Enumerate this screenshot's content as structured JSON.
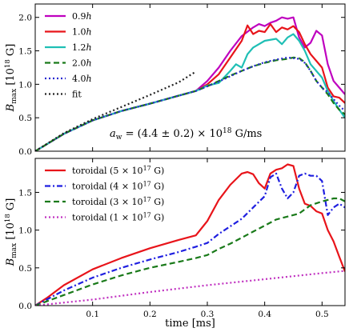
{
  "chart_data": [
    {
      "type": "line",
      "panel": "top",
      "xlim": [
        0.0,
        0.54
      ],
      "ylim": [
        0.0,
        2.2
      ],
      "xticks": [
        0.1,
        0.2,
        0.3,
        0.4,
        0.5
      ],
      "yticks": [
        0.0,
        0.5,
        1.0,
        1.5,
        2.0
      ],
      "ytick_labels": [
        "0.0",
        "0.5",
        "1.0",
        "1.5",
        "2.0"
      ],
      "ylabel_main": "B",
      "ylabel_sub": "max",
      "ylabel_units": "[10",
      "ylabel_exp": "18",
      "ylabel_tail": " G]",
      "annotation": "a_w = (4.4 ± 0.2) × 10^18 G/ms",
      "legend_position": "upper-left",
      "series": [
        {
          "name": "0.9h",
          "color": "#bf00bf",
          "style": "solid",
          "width": 2.2,
          "x": [
            0.0,
            0.05,
            0.1,
            0.15,
            0.2,
            0.25,
            0.28,
            0.3,
            0.32,
            0.34,
            0.36,
            0.38,
            0.39,
            0.4,
            0.41,
            0.42,
            0.43,
            0.44,
            0.45,
            0.46,
            0.47,
            0.48,
            0.49,
            0.5,
            0.51,
            0.52,
            0.53,
            0.54
          ],
          "y": [
            0.0,
            0.26,
            0.46,
            0.6,
            0.71,
            0.83,
            0.9,
            1.05,
            1.25,
            1.5,
            1.72,
            1.85,
            1.9,
            1.87,
            1.92,
            1.95,
            2.0,
            1.98,
            2.0,
            1.7,
            1.55,
            1.62,
            1.8,
            1.73,
            1.3,
            1.05,
            0.95,
            0.85
          ]
        },
        {
          "name": "1.0h",
          "color": "#e8141a",
          "style": "solid",
          "width": 2.2,
          "x": [
            0.0,
            0.05,
            0.1,
            0.15,
            0.2,
            0.25,
            0.28,
            0.3,
            0.32,
            0.34,
            0.36,
            0.37,
            0.38,
            0.39,
            0.4,
            0.41,
            0.42,
            0.43,
            0.44,
            0.45,
            0.46,
            0.47,
            0.48,
            0.49,
            0.5,
            0.51,
            0.52,
            0.53,
            0.54
          ],
          "y": [
            0.0,
            0.26,
            0.46,
            0.6,
            0.71,
            0.83,
            0.9,
            1.0,
            1.15,
            1.4,
            1.65,
            1.88,
            1.75,
            1.8,
            1.78,
            1.9,
            1.78,
            1.85,
            1.82,
            1.87,
            1.78,
            1.6,
            1.45,
            1.35,
            1.25,
            0.95,
            0.82,
            0.8,
            0.72
          ]
        },
        {
          "name": "1.2h",
          "color": "#1fbfb5",
          "style": "solid",
          "width": 2.2,
          "x": [
            0.0,
            0.05,
            0.1,
            0.15,
            0.2,
            0.25,
            0.28,
            0.3,
            0.32,
            0.34,
            0.35,
            0.36,
            0.37,
            0.38,
            0.4,
            0.42,
            0.43,
            0.44,
            0.45,
            0.46,
            0.47,
            0.48,
            0.5,
            0.51,
            0.52,
            0.53,
            0.54
          ],
          "y": [
            0.0,
            0.26,
            0.46,
            0.6,
            0.71,
            0.83,
            0.9,
            0.98,
            1.02,
            1.2,
            1.3,
            1.25,
            1.45,
            1.55,
            1.65,
            1.68,
            1.6,
            1.7,
            1.75,
            1.65,
            1.5,
            1.3,
            1.1,
            0.9,
            0.75,
            0.62,
            0.5
          ]
        },
        {
          "name": "2.0h",
          "color": "#1a7a1a",
          "style": "dashed",
          "width": 2.2,
          "x": [
            0.0,
            0.05,
            0.1,
            0.15,
            0.2,
            0.25,
            0.28,
            0.3,
            0.32,
            0.34,
            0.36,
            0.38,
            0.4,
            0.42,
            0.44,
            0.45,
            0.46,
            0.47,
            0.48,
            0.49,
            0.5,
            0.51,
            0.52,
            0.53,
            0.54
          ],
          "y": [
            0.0,
            0.26,
            0.46,
            0.6,
            0.71,
            0.83,
            0.9,
            0.97,
            1.05,
            1.13,
            1.2,
            1.27,
            1.32,
            1.36,
            1.38,
            1.4,
            1.39,
            1.33,
            1.2,
            1.05,
            0.95,
            0.85,
            0.72,
            0.62,
            0.55
          ]
        },
        {
          "name": "4.0h",
          "color": "#2a2ad0",
          "style": "dotted",
          "width": 2.2,
          "x": [
            0.0,
            0.05,
            0.1,
            0.15,
            0.2,
            0.25,
            0.28,
            0.3,
            0.32,
            0.34,
            0.36,
            0.38,
            0.4,
            0.42,
            0.44,
            0.46,
            0.47,
            0.48,
            0.49,
            0.5,
            0.51,
            0.52,
            0.53,
            0.54
          ],
          "y": [
            0.0,
            0.26,
            0.46,
            0.6,
            0.71,
            0.83,
            0.9,
            0.97,
            1.04,
            1.12,
            1.2,
            1.27,
            1.33,
            1.37,
            1.4,
            1.38,
            1.32,
            1.2,
            1.05,
            0.95,
            0.88,
            0.78,
            0.68,
            0.6
          ]
        },
        {
          "name": "fit",
          "color": "#222222",
          "style": "dotted",
          "width": 2.2,
          "x": [
            0.0,
            0.05,
            0.1,
            0.15,
            0.2,
            0.25,
            0.28
          ],
          "y": [
            0.0,
            0.27,
            0.48,
            0.66,
            0.84,
            1.03,
            1.19
          ]
        }
      ]
    },
    {
      "type": "line",
      "panel": "bottom",
      "xlim": [
        0.0,
        0.54
      ],
      "ylim": [
        0.0,
        1.95
      ],
      "xticks": [
        0.1,
        0.2,
        0.3,
        0.4,
        0.5
      ],
      "xtick_labels": [
        "0.1",
        "0.2",
        "0.3",
        "0.4",
        "0.5"
      ],
      "yticks": [
        0.0,
        0.5,
        1.0,
        1.5
      ],
      "ytick_labels": [
        "0.0",
        "0.5",
        "1.0",
        "1.5"
      ],
      "xlabel": "time [ms]",
      "ylabel_main": "B",
      "ylabel_sub": "max",
      "ylabel_units": "[10",
      "ylabel_exp": "18",
      "ylabel_tail": " G]",
      "legend_position": "upper-left",
      "series": [
        {
          "name": "toroidal (5 × 10^17 G)",
          "label_main": "toroidal (5 × 10",
          "label_exp": "17",
          "label_tail": " G)",
          "color": "#e8141a",
          "style": "solid",
          "width": 2.2,
          "x": [
            0.0,
            0.02,
            0.05,
            0.1,
            0.15,
            0.2,
            0.25,
            0.28,
            0.3,
            0.32,
            0.34,
            0.36,
            0.37,
            0.38,
            0.39,
            0.4,
            0.41,
            0.42,
            0.43,
            0.44,
            0.45,
            0.46,
            0.47,
            0.48,
            0.49,
            0.5,
            0.51,
            0.52,
            0.53,
            0.54
          ],
          "y": [
            0.0,
            0.1,
            0.27,
            0.48,
            0.63,
            0.76,
            0.87,
            0.93,
            1.12,
            1.4,
            1.6,
            1.75,
            1.77,
            1.74,
            1.62,
            1.55,
            1.75,
            1.8,
            1.82,
            1.87,
            1.85,
            1.55,
            1.35,
            1.32,
            1.25,
            1.22,
            1.0,
            0.85,
            0.65,
            0.45
          ]
        },
        {
          "name": "toroidal (4 × 10^17 G)",
          "label_main": "toroidal (4 × 10",
          "label_exp": "17",
          "label_tail": " G)",
          "color": "#1f1fe0",
          "style": "dashdot",
          "width": 2.2,
          "x": [
            0.0,
            0.05,
            0.1,
            0.15,
            0.2,
            0.25,
            0.28,
            0.3,
            0.32,
            0.34,
            0.36,
            0.38,
            0.4,
            0.41,
            0.42,
            0.43,
            0.44,
            0.45,
            0.46,
            0.47,
            0.48,
            0.49,
            0.5,
            0.51,
            0.52,
            0.53,
            0.54
          ],
          "y": [
            0.0,
            0.2,
            0.37,
            0.5,
            0.61,
            0.71,
            0.78,
            0.83,
            0.95,
            1.05,
            1.15,
            1.3,
            1.45,
            1.7,
            1.75,
            1.55,
            1.42,
            1.5,
            1.72,
            1.75,
            1.72,
            1.72,
            1.65,
            1.2,
            1.3,
            1.35,
            1.3
          ]
        },
        {
          "name": "toroidal (3 × 10^17 G)",
          "label_main": "toroidal (3 × 10",
          "label_exp": "17",
          "label_tail": " G)",
          "color": "#1a7a1a",
          "style": "dashed",
          "width": 2.2,
          "x": [
            0.0,
            0.05,
            0.1,
            0.15,
            0.2,
            0.25,
            0.28,
            0.3,
            0.32,
            0.34,
            0.36,
            0.38,
            0.4,
            0.42,
            0.44,
            0.46,
            0.48,
            0.5,
            0.51,
            0.52,
            0.53,
            0.54
          ],
          "y": [
            0.0,
            0.14,
            0.28,
            0.4,
            0.5,
            0.58,
            0.63,
            0.67,
            0.75,
            0.82,
            0.9,
            0.98,
            1.06,
            1.14,
            1.18,
            1.22,
            1.33,
            1.38,
            1.4,
            1.42,
            1.42,
            1.38
          ]
        },
        {
          "name": "toroidal (1 × 10^17 G)",
          "label_main": "toroidal (1 × 10",
          "label_exp": "17",
          "label_tail": " G)",
          "color": "#c030c0",
          "style": "dotted",
          "width": 2.2,
          "x": [
            0.0,
            0.1,
            0.2,
            0.3,
            0.4,
            0.5,
            0.54
          ],
          "y": [
            0.0,
            0.08,
            0.18,
            0.27,
            0.35,
            0.43,
            0.46
          ]
        }
      ]
    }
  ]
}
